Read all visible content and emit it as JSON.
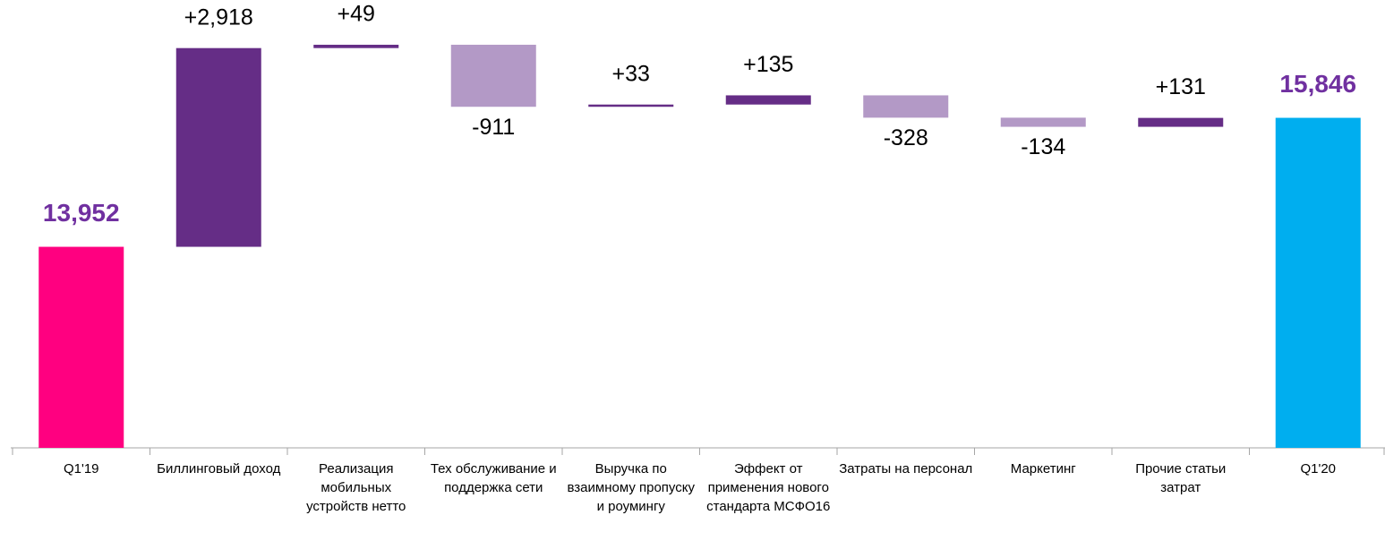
{
  "chart_data": {
    "type": "waterfall",
    "categories": [
      "Q1'19",
      "Биллинговый доход",
      "Реализация мобильных устройств нетто",
      "Тех обслуживание и поддержка сети",
      "Выручка по взаимному пропуску и роумингу",
      "Эффект от применения нового стандарта МСФО16",
      "Затраты на персонал",
      "Маркетинг",
      "Прочие статьи затрат",
      "Q1'20"
    ],
    "values": [
      13952,
      2918,
      49,
      -911,
      33,
      135,
      -328,
      -134,
      131,
      15846
    ],
    "value_labels": [
      "13,952",
      "+2,918",
      "+49",
      "-911",
      "+33",
      "+135",
      "-328",
      "-134",
      "+131",
      "15,846"
    ],
    "colors": {
      "start": "#ff0080",
      "end": "#00aeef",
      "increase": "#652d86",
      "decrease": "#b399c6",
      "total_label": "#7030a0"
    },
    "ylim": [
      11000,
      17576
    ]
  }
}
